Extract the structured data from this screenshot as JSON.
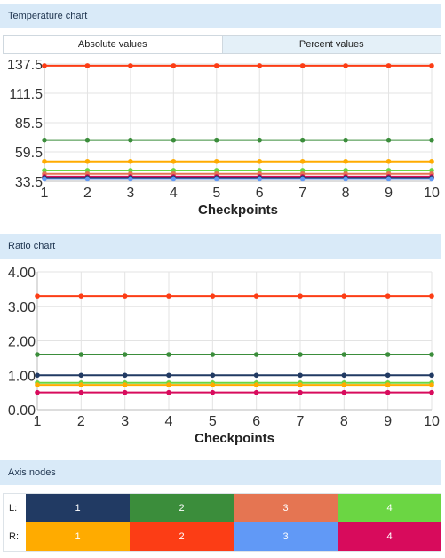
{
  "temperature_section": {
    "title": "Temperature chart"
  },
  "tabs": {
    "absolute": "Absolute values",
    "percent": "Percent values"
  },
  "ratio_section": {
    "title": "Ratio chart"
  },
  "axis_nodes": {
    "title": "Axis nodes",
    "left_label": "L:",
    "right_label": "R:",
    "left": [
      {
        "label": "1",
        "color": "#213a63"
      },
      {
        "label": "2",
        "color": "#3b8d3b"
      },
      {
        "label": "3",
        "color": "#e57552"
      },
      {
        "label": "4",
        "color": "#6bd643"
      }
    ],
    "right": [
      {
        "label": "1",
        "color": "#ffab00"
      },
      {
        "label": "2",
        "color": "#fc3d15"
      },
      {
        "label": "3",
        "color": "#6199f6"
      },
      {
        "label": "4",
        "color": "#d80b5c"
      }
    ]
  },
  "chart_data": [
    {
      "type": "line",
      "xlabel": "Checkpoints",
      "ylabel": "",
      "x": [
        1,
        2,
        3,
        4,
        5,
        6,
        7,
        8,
        9,
        10
      ],
      "y_ticks": [
        "137.5",
        "111.5",
        "85.5",
        "59.5",
        "33.5"
      ],
      "ylim": [
        33.5,
        137.5
      ],
      "grid": true,
      "series": [
        {
          "color": "#fc3d15",
          "values": [
            136,
            136,
            136,
            136,
            136,
            136,
            136,
            136,
            136,
            136
          ]
        },
        {
          "color": "#3b8d3b",
          "values": [
            70,
            70,
            70,
            70,
            70,
            70,
            70,
            70,
            70,
            70
          ]
        },
        {
          "color": "#ffab00",
          "values": [
            51,
            51,
            51,
            51,
            51,
            51,
            51,
            51,
            51,
            51
          ]
        },
        {
          "color": "#6bd643",
          "values": [
            43,
            43,
            43,
            43,
            43,
            43,
            43,
            43,
            43,
            43
          ]
        },
        {
          "color": "#e57552",
          "values": [
            40,
            40,
            40,
            40,
            40,
            40,
            40,
            40,
            40,
            40
          ]
        },
        {
          "color": "#d80b5c",
          "values": [
            37.5,
            37.5,
            37.5,
            37.5,
            37.5,
            37.5,
            37.5,
            37.5,
            37.5,
            37.5
          ]
        },
        {
          "color": "#213a63",
          "values": [
            36.5,
            36.5,
            36.5,
            36.5,
            36.5,
            36.5,
            36.5,
            36.5,
            36.5,
            36.5
          ]
        },
        {
          "color": "#6199f6",
          "values": [
            35.5,
            35.5,
            35.5,
            35.5,
            35.5,
            35.5,
            35.5,
            35.5,
            35.5,
            35.5
          ]
        }
      ]
    },
    {
      "type": "line",
      "xlabel": "Checkpoints",
      "ylabel": "",
      "x": [
        1,
        2,
        3,
        4,
        5,
        6,
        7,
        8,
        9,
        10
      ],
      "y_ticks": [
        "4.00",
        "3.00",
        "2.00",
        "1.00",
        "0.00"
      ],
      "ylim": [
        0,
        4
      ],
      "grid": true,
      "series": [
        {
          "color": "#fc3d15",
          "values": [
            3.3,
            3.3,
            3.3,
            3.3,
            3.3,
            3.3,
            3.3,
            3.3,
            3.3,
            3.3
          ]
        },
        {
          "color": "#3b8d3b",
          "values": [
            1.6,
            1.6,
            1.6,
            1.6,
            1.6,
            1.6,
            1.6,
            1.6,
            1.6,
            1.6
          ]
        },
        {
          "color": "#213a63",
          "values": [
            1.0,
            1.0,
            1.0,
            1.0,
            1.0,
            1.0,
            1.0,
            1.0,
            1.0,
            1.0
          ]
        },
        {
          "color": "#6bd643",
          "values": [
            0.78,
            0.78,
            0.78,
            0.78,
            0.78,
            0.78,
            0.78,
            0.78,
            0.78,
            0.78
          ]
        },
        {
          "color": "#ffab00",
          "values": [
            0.72,
            0.72,
            0.72,
            0.72,
            0.72,
            0.72,
            0.72,
            0.72,
            0.72,
            0.72
          ]
        },
        {
          "color": "#d80b5c",
          "values": [
            0.5,
            0.5,
            0.5,
            0.5,
            0.5,
            0.5,
            0.5,
            0.5,
            0.5,
            0.5
          ]
        }
      ]
    }
  ]
}
